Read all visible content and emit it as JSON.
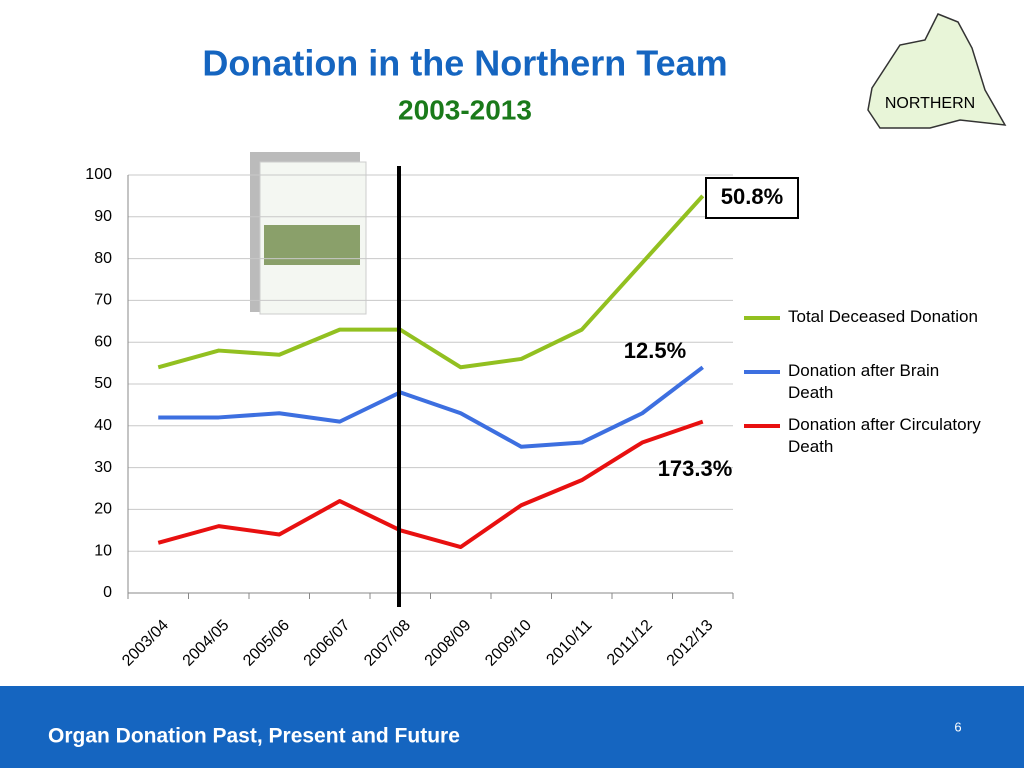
{
  "chart_data": {
    "type": "line",
    "title": "Donation in the Northern Team",
    "subtitle": "2003-2013",
    "categories": [
      "2003/04",
      "2004/05",
      "2005/06",
      "2006/07",
      "2007/08",
      "2008/09",
      "2009/10",
      "2010/11",
      "2011/12",
      "2012/13"
    ],
    "series": [
      {
        "name": "Total Deceased Donation",
        "color": "#92c020",
        "values": [
          54,
          58,
          57,
          63,
          63,
          54,
          56,
          63,
          79,
          95
        ]
      },
      {
        "name": "Donation after Brain Death",
        "color": "#3d6fe0",
        "values": [
          42,
          42,
          43,
          41,
          48,
          43,
          35,
          36,
          43,
          54
        ]
      },
      {
        "name": "Donation after Circulatory Death",
        "color": "#e81010",
        "values": [
          12,
          16,
          14,
          22,
          15,
          11,
          21,
          27,
          36,
          41
        ]
      }
    ],
    "ylim": [
      0,
      100
    ],
    "yticks": [
      0,
      10,
      20,
      30,
      40,
      50,
      60,
      70,
      80,
      90,
      100
    ],
    "grid": true,
    "legend": "right",
    "annotations": [
      "50.8%",
      "12.5%",
      "173.3%"
    ]
  },
  "map_label": "NORTHERN",
  "footer": "Organ Donation Past, Present and Future",
  "page_number": "6"
}
